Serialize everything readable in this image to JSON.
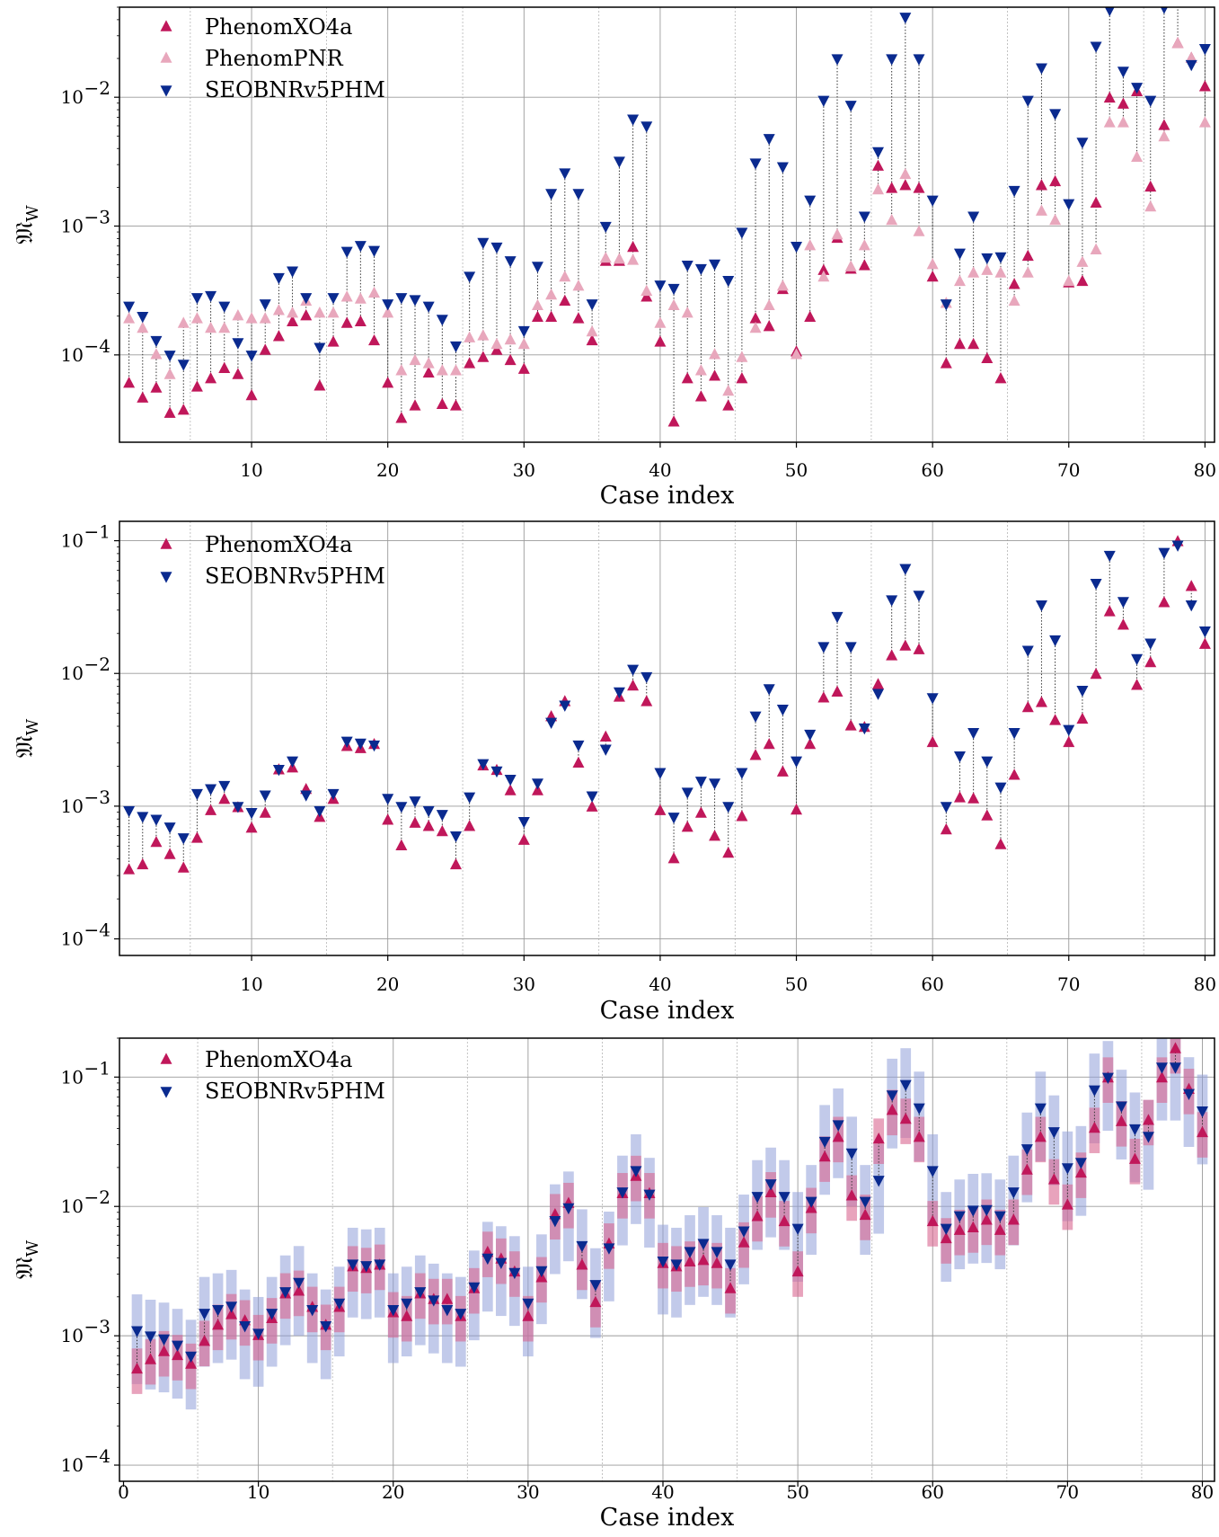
{
  "colors": {
    "phenomxo4a": "#c0175a",
    "phenompnr": "#e8a7bc",
    "seobnrv5phm": "#0a2a8f",
    "band_phenomxo4a": "#d9668f",
    "band_seobnrv5phm": "#8f9fd9",
    "grid": "#999999"
  },
  "chart_data": [
    {
      "type": "scatter",
      "xlabel": "Case index",
      "ylabel": "𝔐W",
      "ylabel_main": "𝔐",
      "ylabel_sub": "W",
      "yscale": "log",
      "xlim": [
        0.3,
        80.7
      ],
      "ylim": [
        2.1e-05,
        0.05
      ],
      "xticks": [
        "10",
        "20",
        "30",
        "40",
        "50",
        "60",
        "70",
        "80"
      ],
      "yticks": [
        {
          "value": 0.0001,
          "base": "10",
          "exp": "−4"
        },
        {
          "value": 0.001,
          "base": "10",
          "exp": "−3"
        },
        {
          "value": 0.01,
          "base": "10",
          "exp": "−2"
        }
      ],
      "grid": true,
      "legend_position": "top-left",
      "legend": [
        "PhenomXO4a",
        "PhenomPNR",
        "SEOBNRv5PHM"
      ],
      "x": [
        1,
        2,
        3,
        4,
        5,
        6,
        7,
        8,
        9,
        10,
        11,
        12,
        13,
        14,
        15,
        16,
        17,
        18,
        19,
        20,
        21,
        22,
        23,
        24,
        25,
        26,
        27,
        28,
        29,
        30,
        31,
        32,
        33,
        34,
        35,
        36,
        37,
        38,
        39,
        40,
        41,
        42,
        43,
        44,
        45,
        46,
        47,
        48,
        49,
        50,
        51,
        52,
        53,
        54,
        55,
        56,
        57,
        58,
        59,
        60,
        61,
        62,
        63,
        64,
        65,
        66,
        67,
        68,
        69,
        70,
        71,
        72,
        73,
        74,
        75,
        76,
        77,
        78,
        79,
        80
      ],
      "series": [
        {
          "name": "PhenomXO4a",
          "marker": "triangle-up",
          "color": "#c0175a",
          "values": [
            6e-05,
            4.6e-05,
            5.5e-05,
            3.5e-05,
            3.7e-05,
            5.6e-05,
            6.5e-05,
            7.8e-05,
            7e-05,
            4.8e-05,
            0.000108,
            0.000138,
            0.00018,
            0.0002,
            5.7e-05,
            0.000125,
            0.000175,
            0.00018,
            0.000128,
            6e-05,
            3.2e-05,
            4e-05,
            7.2e-05,
            4.1e-05,
            4e-05,
            8.5e-05,
            9.5e-05,
            0.000108,
            9e-05,
            7.7e-05,
            0.000195,
            0.000195,
            0.00026,
            0.00019,
            0.000128,
            0.00053,
            0.00053,
            0.00068,
            0.00028,
            0.000125,
            3e-05,
            6.5e-05,
            4.7e-05,
            6.8e-05,
            4e-05,
            6.5e-05,
            0.00019,
            0.000165,
            0.00032,
            0.000105,
            0.000195,
            0.00045,
            0.0008,
            0.00046,
            0.00049,
            0.0029,
            0.00195,
            0.00205,
            0.00195,
            0.0004,
            8.5e-05,
            0.00012,
            0.00012,
            9.3e-05,
            6.5e-05,
            0.00035,
            0.00058,
            0.00205,
            0.0022,
            0.00036,
            0.00037,
            0.0015,
            0.0098,
            0.0088,
            0.011,
            0.002,
            0.006,
            0.026,
            0.02,
            0.012
          ]
        },
        {
          "name": "PhenomPNR",
          "marker": "triangle-up",
          "color": "#e8a7bc",
          "values": [
            0.00019,
            0.00016,
            0.0001,
            7e-05,
            0.000175,
            0.00019,
            0.00016,
            0.00016,
            0.0002,
            0.00019,
            0.00019,
            0.00022,
            0.00021,
            0.00026,
            0.00021,
            0.00021,
            0.00028,
            0.00027,
            0.0003,
            0.00021,
            7.5e-05,
            9e-05,
            8.5e-05,
            7.5e-05,
            7.5e-05,
            0.000135,
            0.00014,
            0.00012,
            0.00013,
            0.00012,
            0.00024,
            0.00029,
            0.0004,
            0.00034,
            0.00015,
            0.00056,
            0.00055,
            0.00054,
            0.00031,
            0.000175,
            0.00024,
            0.00021,
            7.5e-05,
            0.0001,
            5.2e-05,
            9.5e-05,
            0.00016,
            0.00024,
            0.00034,
            0.0001,
            0.0007,
            0.0004,
            0.00085,
            0.00048,
            0.0007,
            0.0019,
            0.0011,
            0.0025,
            0.0009,
            0.0005,
            0.00025,
            0.00037,
            0.00043,
            0.00045,
            0.00043,
            0.00026,
            0.00043,
            0.0013,
            0.0011,
            0.00037,
            0.00052,
            0.00065,
            0.0063,
            0.0063,
            0.0034,
            0.0014,
            0.0049,
            0.026,
            0.02,
            0.0063
          ]
        },
        {
          "name": "SEOBNRv5PHM",
          "marker": "triangle-down",
          "color": "#0a2a8f",
          "values": [
            0.00024,
            0.0002,
            0.00013,
            0.0001,
            8.5e-05,
            0.00028,
            0.00029,
            0.00024,
            0.000125,
            0.0001,
            0.00025,
            0.0004,
            0.00045,
            0.00028,
            0.000115,
            0.00028,
            0.00064,
            0.00071,
            0.00065,
            0.00025,
            0.00028,
            0.00027,
            0.00024,
            0.00019,
            0.000118,
            0.00041,
            0.00075,
            0.00069,
            0.00054,
            0.000155,
            0.00049,
            0.0018,
            0.0026,
            0.0018,
            0.00025,
            0.001,
            0.0032,
            0.0068,
            0.006,
            0.00035,
            0.00033,
            0.0005,
            0.00047,
            0.00051,
            0.00038,
            0.0009,
            0.0031,
            0.0048,
            0.0029,
            0.0007,
            0.0016,
            0.0095,
            0.02,
            0.0087,
            0.0012,
            0.0038,
            0.02,
            0.042,
            0.02,
            0.0016,
            0.00025,
            0.00062,
            0.0012,
            0.00057,
            0.00058,
            0.0019,
            0.0095,
            0.017,
            0.0075,
            0.0015,
            0.0045,
            0.025,
            0.048,
            0.016,
            0.012,
            0.0095,
            0.05,
            0.057,
            0.018,
            0.024
          ]
        }
      ]
    },
    {
      "type": "scatter",
      "xlabel": "Case index",
      "ylabel": "𝔐W",
      "ylabel_main": "𝔐",
      "ylabel_sub": "W",
      "yscale": "log",
      "xlim": [
        0.3,
        80.7
      ],
      "ylim": [
        7.5e-05,
        0.14
      ],
      "xticks": [
        "10",
        "20",
        "30",
        "40",
        "50",
        "60",
        "70",
        "80"
      ],
      "yticks": [
        {
          "value": 0.0001,
          "base": "10",
          "exp": "−4"
        },
        {
          "value": 0.001,
          "base": "10",
          "exp": "−3"
        },
        {
          "value": 0.01,
          "base": "10",
          "exp": "−2"
        },
        {
          "value": 0.1,
          "base": "10",
          "exp": "−1"
        }
      ],
      "grid": true,
      "legend_position": "top-left",
      "legend": [
        "PhenomXO4a",
        "SEOBNRv5PHM"
      ],
      "x": [
        1,
        2,
        3,
        4,
        5,
        6,
        7,
        8,
        9,
        10,
        11,
        12,
        13,
        14,
        15,
        16,
        17,
        18,
        19,
        20,
        21,
        22,
        23,
        24,
        25,
        26,
        27,
        28,
        29,
        30,
        31,
        32,
        33,
        34,
        35,
        36,
        37,
        38,
        39,
        40,
        41,
        42,
        43,
        44,
        45,
        46,
        47,
        48,
        49,
        50,
        51,
        52,
        53,
        54,
        55,
        56,
        57,
        58,
        59,
        60,
        61,
        62,
        63,
        64,
        65,
        66,
        67,
        68,
        69,
        70,
        71,
        72,
        73,
        74,
        75,
        76,
        77,
        78,
        79,
        80
      ],
      "series": [
        {
          "name": "PhenomXO4a",
          "marker": "triangle-up",
          "color": "#c0175a",
          "values": [
            0.00033,
            0.00036,
            0.00053,
            0.00043,
            0.00034,
            0.00057,
            0.00092,
            0.00112,
            0.00097,
            0.00068,
            0.00088,
            0.00187,
            0.00193,
            0.00133,
            0.00082,
            0.00112,
            0.0028,
            0.0027,
            0.0029,
            0.00078,
            0.0005,
            0.00074,
            0.0007,
            0.00064,
            0.00036,
            0.0007,
            0.002,
            0.00185,
            0.0013,
            0.00055,
            0.0013,
            0.0047,
            0.0061,
            0.0021,
            0.00098,
            0.0033,
            0.0066,
            0.008,
            0.0061,
            0.00092,
            0.0004,
            0.00069,
            0.00088,
            0.00059,
            0.00044,
            0.00083,
            0.0024,
            0.0029,
            0.0018,
            0.00093,
            0.0029,
            0.0065,
            0.0072,
            0.004,
            0.0039,
            0.0082,
            0.0135,
            0.016,
            0.015,
            0.003,
            0.00066,
            0.00115,
            0.00113,
            0.00084,
            0.00051,
            0.0017,
            0.0055,
            0.006,
            0.0044,
            0.003,
            0.0045,
            0.0098,
            0.029,
            0.023,
            0.0081,
            0.012,
            0.034,
            0.098,
            0.045,
            0.0165
          ]
        },
        {
          "name": "SEOBNRv5PHM",
          "marker": "triangle-down",
          "color": "#0a2a8f",
          "values": [
            0.00093,
            0.00084,
            0.0008,
            0.0007,
            0.00058,
            0.00125,
            0.00136,
            0.00144,
            0.001,
            0.0009,
            0.00122,
            0.0019,
            0.0022,
            0.00122,
            0.00093,
            0.00125,
            0.0031,
            0.003,
            0.0029,
            0.00115,
            0.001,
            0.0011,
            0.00093,
            0.00087,
            0.0006,
            0.00118,
            0.0021,
            0.00185,
            0.0016,
            0.00077,
            0.0015,
            0.0043,
            0.0058,
            0.0029,
            0.0012,
            0.0027,
            0.0073,
            0.0108,
            0.0095,
            0.0018,
            0.00083,
            0.00128,
            0.00155,
            0.0015,
            0.001,
            0.0018,
            0.0048,
            0.0077,
            0.0054,
            0.0022,
            0.0035,
            0.016,
            0.027,
            0.016,
            0.0039,
            0.0071,
            0.036,
            0.062,
            0.039,
            0.0066,
            0.001,
            0.0024,
            0.0036,
            0.0022,
            0.0014,
            0.0036,
            0.015,
            0.033,
            0.018,
            0.0038,
            0.0075,
            0.048,
            0.078,
            0.035,
            0.013,
            0.017,
            0.082,
            0.093,
            0.033,
            0.021
          ]
        }
      ]
    },
    {
      "type": "scatter",
      "xlabel": "Case index",
      "ylabel": "𝔐W",
      "ylabel_main": "𝔐",
      "ylabel_sub": "W",
      "yscale": "log",
      "xlim": [
        -0.3,
        80.9
      ],
      "ylim": [
        7.5e-05,
        0.2
      ],
      "xticks": [
        "0",
        "10",
        "20",
        "30",
        "40",
        "50",
        "60",
        "70",
        "80"
      ],
      "yticks": [
        {
          "value": 0.0001,
          "base": "10",
          "exp": "−4"
        },
        {
          "value": 0.001,
          "base": "10",
          "exp": "−3"
        },
        {
          "value": 0.01,
          "base": "10",
          "exp": "−2"
        },
        {
          "value": 0.1,
          "base": "10",
          "exp": "−1"
        }
      ],
      "grid": true,
      "legend_position": "top-left",
      "legend": [
        "PhenomXO4a",
        "SEOBNRv5PHM"
      ],
      "x": [
        1,
        2,
        3,
        4,
        5,
        6,
        7,
        8,
        9,
        10,
        11,
        12,
        13,
        14,
        15,
        16,
        17,
        18,
        19,
        20,
        21,
        22,
        23,
        24,
        25,
        26,
        27,
        28,
        29,
        30,
        31,
        32,
        33,
        34,
        35,
        36,
        37,
        38,
        39,
        40,
        41,
        42,
        43,
        44,
        45,
        46,
        47,
        48,
        49,
        50,
        51,
        52,
        53,
        54,
        55,
        56,
        57,
        58,
        59,
        60,
        61,
        62,
        63,
        64,
        65,
        66,
        67,
        68,
        69,
        70,
        71,
        72,
        73,
        74,
        75,
        76,
        77,
        78,
        79,
        80
      ],
      "series": [
        {
          "name": "PhenomXO4a",
          "marker": "triangle-up",
          "color": "#c0175a",
          "values": [
            0.00055,
            0.00065,
            0.00075,
            0.0007,
            0.0006,
            0.0009,
            0.0012,
            0.00145,
            0.0013,
            0.001,
            0.00135,
            0.0021,
            0.0022,
            0.00165,
            0.0012,
            0.00165,
            0.0034,
            0.0033,
            0.0035,
            0.0015,
            0.0014,
            0.0021,
            0.0019,
            0.0019,
            0.0014,
            0.0023,
            0.0044,
            0.0039,
            0.0031,
            0.0014,
            0.0028,
            0.0086,
            0.0105,
            0.0035,
            0.0018,
            0.0051,
            0.0125,
            0.017,
            0.0125,
            0.0036,
            0.0034,
            0.0037,
            0.0038,
            0.0036,
            0.0023,
            0.0052,
            0.0083,
            0.0127,
            0.0076,
            0.0031,
            0.0096,
            0.024,
            0.034,
            0.012,
            0.0085,
            0.033,
            0.055,
            0.047,
            0.034,
            0.0076,
            0.0056,
            0.0065,
            0.0068,
            0.0078,
            0.0065,
            0.0078,
            0.019,
            0.034,
            0.016,
            0.0102,
            0.018,
            0.04,
            0.098,
            0.045,
            0.023,
            0.046,
            0.098,
            0.165,
            0.08,
            0.037
          ]
        },
        {
          "name": "SEOBNRv5PHM",
          "marker": "triangle-down",
          "color": "#0a2a8f",
          "values": [
            0.0011,
            0.001,
            0.00095,
            0.00085,
            0.0007,
            0.0015,
            0.0016,
            0.0017,
            0.0012,
            0.00105,
            0.0015,
            0.0022,
            0.0026,
            0.0016,
            0.0012,
            0.0018,
            0.0036,
            0.0035,
            0.0036,
            0.0016,
            0.0018,
            0.0022,
            0.0019,
            0.0016,
            0.0015,
            0.0024,
            0.004,
            0.0037,
            0.0031,
            0.0018,
            0.0032,
            0.0078,
            0.0098,
            0.005,
            0.0025,
            0.0048,
            0.013,
            0.019,
            0.0125,
            0.0038,
            0.0036,
            0.0045,
            0.0052,
            0.0045,
            0.0036,
            0.0065,
            0.012,
            0.015,
            0.012,
            0.0068,
            0.011,
            0.032,
            0.043,
            0.026,
            0.011,
            0.016,
            0.073,
            0.088,
            0.058,
            0.019,
            0.0068,
            0.0085,
            0.0094,
            0.0095,
            0.0085,
            0.013,
            0.028,
            0.058,
            0.038,
            0.02,
            0.022,
            0.08,
            0.1,
            0.06,
            0.04,
            0.035,
            0.12,
            0.12,
            0.075,
            0.055
          ]
        }
      ]
    }
  ]
}
